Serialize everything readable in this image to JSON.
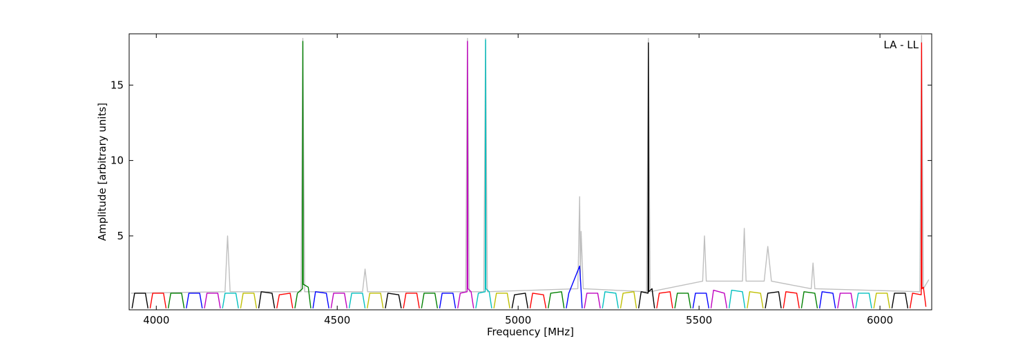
{
  "chart_data": {
    "type": "line",
    "x_label": "Frequency [MHz]",
    "y_label": "Amplitude [arbitrary units]",
    "annotation": "LA - LL",
    "xlim": [
      3925,
      6143
    ],
    "ylim": [
      0.1,
      18.4
    ],
    "xticks": [
      4000,
      4500,
      5000,
      5500,
      6000
    ],
    "yticks": [
      5,
      10,
      15
    ],
    "series": [
      {
        "color": "#bfbfbf",
        "x": [
          3930,
          4190,
          4197,
          4204,
          4400,
          4405,
          4410,
          4570,
          4577,
          4584,
          4855,
          4860,
          4865,
          4905,
          4910,
          4915,
          5165,
          5170,
          5172,
          5174,
          5180,
          5355,
          5360,
          5365,
          5510,
          5515,
          5520,
          5620,
          5625,
          5630,
          5680,
          5690,
          5700,
          5810,
          5815,
          5820,
          6110,
          6115,
          6120,
          6135
        ],
        "values": [
          1.2,
          1.3,
          5.0,
          1.3,
          1.3,
          18.1,
          1.3,
          1.3,
          2.8,
          1.3,
          1.3,
          18.1,
          1.3,
          1.3,
          18.1,
          1.3,
          1.5,
          7.6,
          2.0,
          5.3,
          1.5,
          1.3,
          18.1,
          1.3,
          2.0,
          5.0,
          2.0,
          2.0,
          5.5,
          2.0,
          2.0,
          4.3,
          2.0,
          1.5,
          3.2,
          1.5,
          1.3,
          18.3,
          1.5,
          2.1
        ]
      },
      {
        "color": "#000000",
        "x": [
          3933,
          3940,
          3970,
          3977,
          3980,
          4283,
          4290,
          4320,
          4327,
          4330,
          4633,
          4640,
          4670,
          4677,
          4680,
          4983,
          4990,
          5020,
          5027,
          5030,
          5333,
          5340,
          5359,
          5360,
          5361,
          5370,
          5377,
          5380,
          5683,
          5690,
          5720,
          5727,
          5730,
          6033,
          6040,
          6070,
          6077
        ],
        "values": [
          0.2,
          1.2,
          1.2,
          0.2,
          null,
          0.2,
          1.3,
          1.2,
          0.2,
          null,
          0.2,
          1.2,
          1.1,
          0.2,
          null,
          0.2,
          1.1,
          1.2,
          0.2,
          null,
          0.2,
          1.3,
          1.2,
          17.8,
          1.3,
          1.5,
          0.2,
          null,
          0.2,
          1.2,
          1.3,
          0.2,
          null,
          0.2,
          1.2,
          1.2,
          0.2
        ]
      },
      {
        "color": "#ff0000",
        "x": [
          3983,
          3990,
          4020,
          4027,
          4030,
          4333,
          4340,
          4370,
          4377,
          4380,
          4683,
          4690,
          4720,
          4727,
          4730,
          5033,
          5040,
          5070,
          5077,
          5080,
          5383,
          5390,
          5420,
          5427,
          5430,
          5733,
          5740,
          5770,
          5777,
          5780,
          6083,
          6090,
          6114,
          6115,
          6116,
          6120,
          6127
        ],
        "values": [
          0.2,
          1.2,
          1.2,
          0.2,
          null,
          0.2,
          1.1,
          1.2,
          0.2,
          null,
          0.2,
          1.2,
          1.2,
          0.2,
          null,
          0.2,
          1.2,
          1.1,
          0.2,
          null,
          0.2,
          1.2,
          1.3,
          0.2,
          null,
          0.2,
          1.3,
          1.2,
          0.2,
          null,
          0.2,
          1.2,
          1.1,
          17.8,
          1.5,
          1.6,
          0.3
        ]
      },
      {
        "color": "#008000",
        "x": [
          4033,
          4040,
          4070,
          4077,
          4080,
          4383,
          4390,
          4404,
          4405,
          4406,
          4420,
          4427,
          4430,
          4733,
          4740,
          4770,
          4777,
          4780,
          5083,
          5090,
          5120,
          5127,
          5130,
          5433,
          5440,
          5470,
          5477,
          5480,
          5783,
          5790,
          5820,
          5827
        ],
        "values": [
          0.2,
          1.2,
          1.2,
          0.2,
          null,
          0.2,
          1.2,
          1.5,
          17.9,
          1.8,
          1.6,
          0.2,
          null,
          0.2,
          1.2,
          1.2,
          0.2,
          null,
          0.2,
          1.2,
          1.3,
          0.2,
          null,
          0.2,
          1.2,
          1.2,
          0.2,
          null,
          0.2,
          1.3,
          1.2,
          0.2
        ]
      },
      {
        "color": "#0000ff",
        "x": [
          4083,
          4090,
          4120,
          4127,
          4130,
          4433,
          4440,
          4470,
          4477,
          4480,
          4783,
          4790,
          4820,
          4827,
          4830,
          5133,
          5140,
          5170,
          5177,
          5180,
          5483,
          5490,
          5520,
          5527,
          5530,
          5833,
          5840,
          5870,
          5877
        ],
        "values": [
          0.2,
          1.2,
          1.2,
          0.2,
          null,
          0.2,
          1.3,
          1.2,
          0.2,
          null,
          0.2,
          1.2,
          1.2,
          0.2,
          null,
          0.2,
          1.2,
          3.0,
          0.2,
          null,
          0.2,
          1.2,
          1.2,
          0.2,
          null,
          0.2,
          1.3,
          1.2,
          0.2
        ]
      },
      {
        "color": "#bf00bf",
        "x": [
          4133,
          4140,
          4170,
          4177,
          4180,
          4483,
          4490,
          4520,
          4527,
          4530,
          4833,
          4840,
          4859,
          4860,
          4861,
          4870,
          4877,
          4880,
          5183,
          5190,
          5220,
          5227,
          5230,
          5533,
          5540,
          5570,
          5577,
          5580,
          5883,
          5890,
          5920,
          5927
        ],
        "values": [
          0.2,
          1.2,
          1.2,
          0.2,
          null,
          0.2,
          1.2,
          1.2,
          0.2,
          null,
          0.2,
          1.2,
          1.3,
          17.9,
          1.5,
          1.3,
          0.2,
          null,
          0.2,
          1.2,
          1.2,
          0.2,
          null,
          0.2,
          1.4,
          1.2,
          0.2,
          null,
          0.2,
          1.2,
          1.2,
          0.2
        ]
      },
      {
        "color": "#00bfbf",
        "x": [
          4183,
          4190,
          4220,
          4227,
          4230,
          4533,
          4540,
          4570,
          4577,
          4580,
          4883,
          4890,
          4909,
          4910,
          4911,
          4920,
          4927,
          4930,
          5233,
          5240,
          5270,
          5277,
          5280,
          5583,
          5590,
          5620,
          5627,
          5630,
          5933,
          5940,
          5970,
          5977
        ],
        "values": [
          0.2,
          1.2,
          1.2,
          0.2,
          null,
          0.2,
          1.2,
          1.2,
          0.2,
          null,
          0.2,
          1.2,
          1.3,
          18.0,
          1.5,
          1.3,
          0.2,
          null,
          0.2,
          1.3,
          1.2,
          0.2,
          null,
          0.2,
          1.4,
          1.3,
          0.2,
          null,
          0.2,
          1.2,
          1.2,
          0.2
        ]
      },
      {
        "color": "#bfbf00",
        "x": [
          4233,
          4240,
          4270,
          4277,
          4280,
          4583,
          4590,
          4620,
          4627,
          4630,
          4933,
          4940,
          4970,
          4977,
          4980,
          5283,
          5290,
          5320,
          5327,
          5330,
          5633,
          5640,
          5670,
          5677,
          5680,
          5983,
          5990,
          6020,
          6027
        ],
        "values": [
          0.2,
          1.2,
          1.2,
          0.2,
          null,
          0.2,
          1.2,
          1.2,
          0.2,
          null,
          0.2,
          1.2,
          1.2,
          0.2,
          null,
          0.2,
          1.2,
          1.3,
          0.2,
          null,
          0.2,
          1.3,
          1.2,
          0.2,
          null,
          0.2,
          1.2,
          1.2,
          0.2
        ]
      }
    ]
  }
}
